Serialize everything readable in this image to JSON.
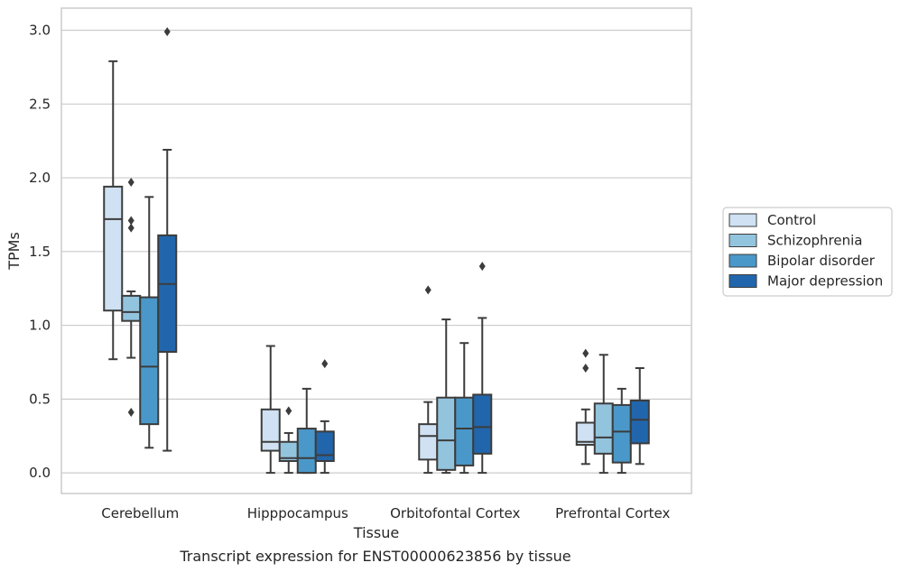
{
  "caption": "Transcript expression for ENST00000623856 by tissue",
  "chart_data": {
    "type": "box",
    "xlabel": "Tissue",
    "ylabel": "TPMs",
    "ylim": [
      -0.14,
      3.15
    ],
    "yticks": [
      0.0,
      0.5,
      1.0,
      1.5,
      2.0,
      2.5,
      3.0
    ],
    "ytick_labels": [
      "0.0",
      "0.5",
      "1.0",
      "1.5",
      "2.0",
      "2.5",
      "3.0"
    ],
    "grid": true,
    "legend_position": "right",
    "categories": [
      "Cerebellum",
      "Hipppocampus",
      "Orbitofontal Cortex",
      "Prefrontal Cortex"
    ],
    "series": [
      {
        "name": "Control",
        "color": "#cfe1f2",
        "boxes": [
          {
            "whislo": 0.77,
            "q1": 1.1,
            "med": 1.72,
            "q3": 1.94,
            "whishi": 2.79,
            "fliers": []
          },
          {
            "whislo": 0.0,
            "q1": 0.15,
            "med": 0.21,
            "q3": 0.43,
            "whishi": 0.86,
            "fliers": []
          },
          {
            "whislo": 0.0,
            "q1": 0.09,
            "med": 0.25,
            "q3": 0.33,
            "whishi": 0.48,
            "fliers": [
              1.24
            ]
          },
          {
            "whislo": 0.06,
            "q1": 0.19,
            "med": 0.21,
            "q3": 0.34,
            "whishi": 0.43,
            "fliers": [
              0.71,
              0.81
            ]
          }
        ]
      },
      {
        "name": "Schizophrenia",
        "color": "#93c4de",
        "boxes": [
          {
            "whislo": 0.78,
            "q1": 1.03,
            "med": 1.09,
            "q3": 1.2,
            "whishi": 1.23,
            "fliers": [
              0.41,
              1.66,
              1.71,
              1.97
            ]
          },
          {
            "whislo": 0.0,
            "q1": 0.08,
            "med": 0.1,
            "q3": 0.21,
            "whishi": 0.27,
            "fliers": [
              0.42
            ]
          },
          {
            "whislo": 0.0,
            "q1": 0.02,
            "med": 0.22,
            "q3": 0.51,
            "whishi": 1.04,
            "fliers": []
          },
          {
            "whislo": 0.0,
            "q1": 0.13,
            "med": 0.24,
            "q3": 0.47,
            "whishi": 0.8,
            "fliers": []
          }
        ]
      },
      {
        "name": "Bipolar disorder",
        "color": "#4a98c9",
        "boxes": [
          {
            "whislo": 0.17,
            "q1": 0.33,
            "med": 0.72,
            "q3": 1.19,
            "whishi": 1.87,
            "fliers": []
          },
          {
            "whislo": 0.0,
            "q1": 0.0,
            "med": 0.1,
            "q3": 0.3,
            "whishi": 0.57,
            "fliers": []
          },
          {
            "whislo": 0.0,
            "q1": 0.05,
            "med": 0.3,
            "q3": 0.51,
            "whishi": 0.88,
            "fliers": []
          },
          {
            "whislo": 0.0,
            "q1": 0.07,
            "med": 0.28,
            "q3": 0.46,
            "whishi": 0.57,
            "fliers": []
          }
        ]
      },
      {
        "name": "Major depression",
        "color": "#2166ac",
        "boxes": [
          {
            "whislo": 0.15,
            "q1": 0.82,
            "med": 1.28,
            "q3": 1.61,
            "whishi": 2.19,
            "fliers": [
              2.99
            ]
          },
          {
            "whislo": 0.0,
            "q1": 0.08,
            "med": 0.12,
            "q3": 0.28,
            "whishi": 0.35,
            "fliers": [
              0.74
            ]
          },
          {
            "whislo": 0.0,
            "q1": 0.13,
            "med": 0.31,
            "q3": 0.53,
            "whishi": 1.05,
            "fliers": [
              1.4
            ]
          },
          {
            "whislo": 0.06,
            "q1": 0.2,
            "med": 0.36,
            "q3": 0.49,
            "whishi": 0.71,
            "fliers": []
          }
        ]
      }
    ]
  }
}
